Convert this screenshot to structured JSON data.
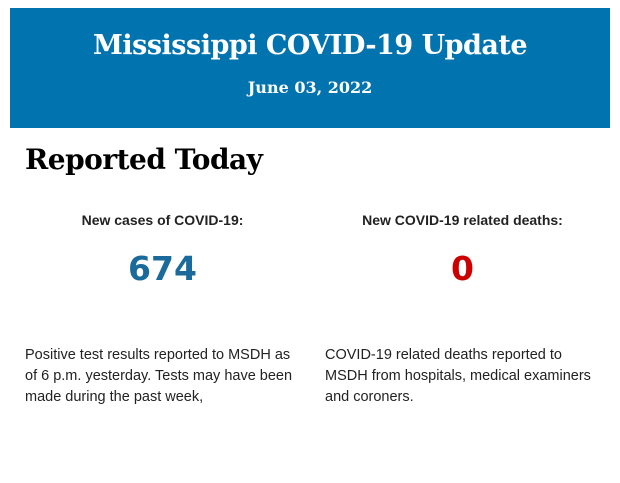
{
  "header": {
    "title": "Mississippi COVID-19 Update",
    "date": "June 03, 2022",
    "background": "#0174b0"
  },
  "section": {
    "heading": "Reported Today"
  },
  "stats": [
    {
      "label": "New cases of COVID-19:",
      "value": "674",
      "color": "#1a6a9c",
      "description": "Positive test results reported to MSDH as of 6 p.m. yesterday. Tests may have been made during the past week,"
    },
    {
      "label": "New COVID-19 related deaths:",
      "value": "0",
      "color": "#cc0000",
      "description": "COVID-19 related deaths reported to MSDH from hospitals, medical examiners and coroners."
    }
  ]
}
